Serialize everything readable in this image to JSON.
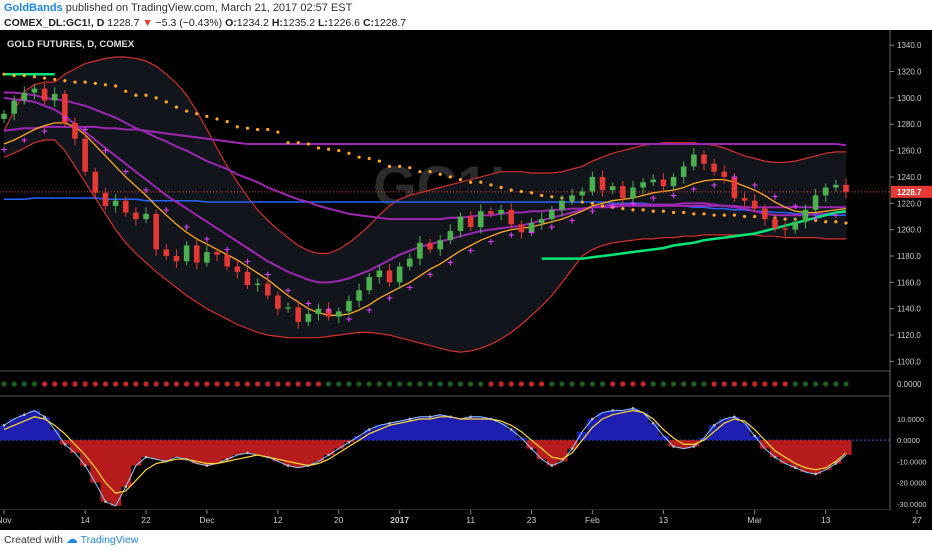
{
  "header": {
    "author": "GoldBands",
    "published_text": "published on TradingView.com, March 21, 2017 02:57 EST",
    "symbol": "COMEX_DL:GC1!, D",
    "last": "1228.7",
    "change_arrow": "▼",
    "change": "−5.3 (−0.43%)",
    "o_label": "O:",
    "o": "1234.2",
    "h_label": "H:",
    "h": "1235.2",
    "l_label": "L:",
    "l": "1226.6",
    "c_label": "C:",
    "c": "1228.7"
  },
  "footer": {
    "created_with": "Created with",
    "brand": "TradingView"
  },
  "colors": {
    "bg": "#000000",
    "up": "#4caf50",
    "down": "#e53935",
    "purple": "#9c27b0",
    "red_band": "#d32f2f",
    "orange": "#ffa726",
    "magenta": "#e040fb",
    "green_ma": "#00e676",
    "blue_line": "#2962ff",
    "hist_pos": "#1e1eb0",
    "hist_neg": "#b71c1c"
  },
  "chart_data": {
    "type": "candlestick",
    "title": "GOLD FUTURES, D, COMEX",
    "watermark": "GC1!",
    "last_price_label": "1228.7",
    "ylim": [
      1095,
      1350
    ],
    "y_ticks": [
      "1340.0",
      "1320.0",
      "1300.0",
      "1280.0",
      "1260.0",
      "1240.0",
      "1220.0",
      "1200.0",
      "1180.0",
      "1160.0",
      "1140.0",
      "1120.0",
      "1100.0"
    ],
    "x_ticks": [
      {
        "label": "Nov",
        "i": 0
      },
      {
        "label": "14",
        "i": 8
      },
      {
        "label": "22",
        "i": 14
      },
      {
        "label": "Dec",
        "i": 20
      },
      {
        "label": "12",
        "i": 27
      },
      {
        "label": "20",
        "i": 33
      },
      {
        "label": "2017",
        "i": 39
      },
      {
        "label": "11",
        "i": 46
      },
      {
        "label": "23",
        "i": 52
      },
      {
        "label": "Feb",
        "i": 58
      },
      {
        "label": "13",
        "i": 65
      },
      {
        "label": "Mar",
        "i": 74
      },
      {
        "label": "13",
        "i": 81
      },
      {
        "label": "27",
        "i": 90
      }
    ],
    "closes": [
      1288,
      1298,
      1304,
      1307,
      1298,
      1303,
      1281,
      1269,
      1244,
      1228,
      1218,
      1222,
      1213,
      1208,
      1212,
      1185,
      1180,
      1176,
      1188,
      1175,
      1183,
      1181,
      1172,
      1168,
      1158,
      1159,
      1150,
      1140,
      1141,
      1130,
      1136,
      1140,
      1134,
      1138,
      1146,
      1154,
      1164,
      1169,
      1160,
      1172,
      1178,
      1190,
      1185,
      1192,
      1199,
      1210,
      1202,
      1214,
      1212,
      1215,
      1204,
      1198,
      1205,
      1208,
      1215,
      1222,
      1226,
      1229,
      1240,
      1230,
      1233,
      1224,
      1232,
      1236,
      1238,
      1233,
      1240,
      1248,
      1257,
      1250,
      1244,
      1240,
      1224,
      1222,
      1216,
      1208,
      1201,
      1200,
      1206,
      1215,
      1226,
      1232,
      1234,
      1228.7
    ],
    "ma_purple_fast": [
      1300,
      1299,
      1298,
      1297,
      1294,
      1291,
      1286,
      1280,
      1274,
      1268,
      1262,
      1256,
      1250,
      1244,
      1238,
      1232,
      1226,
      1221,
      1216,
      1211,
      1206,
      1201,
      1196,
      1191,
      1186,
      1181,
      1176,
      1172,
      1168,
      1165,
      1162,
      1160,
      1160,
      1161,
      1163,
      1166,
      1169,
      1173,
      1177,
      1181,
      1184,
      1187,
      1189,
      1191,
      1193,
      1195,
      1197,
      1199,
      1200,
      1201,
      1202,
      1203,
      1205,
      1207,
      1209,
      1211,
      1213,
      1215,
      1217,
      1218,
      1219,
      1219,
      1219,
      1219,
      1219,
      1219,
      1219,
      1220,
      1220,
      1220,
      1219,
      1218,
      1217,
      1216,
      1214,
      1212,
      1211,
      1211,
      1211,
      1211,
      1212,
      1212,
      1213,
      1213
    ],
    "ma_purple_slow": [
      1304,
      1304,
      1303,
      1302,
      1300,
      1299,
      1298,
      1296,
      1294,
      1291,
      1288,
      1285,
      1281,
      1277,
      1274,
      1270,
      1267,
      1263,
      1260,
      1256,
      1252,
      1249,
      1246,
      1242,
      1239,
      1236,
      1232,
      1229,
      1226,
      1223,
      1221,
      1218,
      1216,
      1214,
      1212,
      1211,
      1210,
      1209,
      1208,
      1208,
      1208,
      1208,
      1208,
      1208,
      1209,
      1209,
      1210,
      1211,
      1211,
      1212,
      1213,
      1213,
      1214,
      1214,
      1215,
      1215,
      1216,
      1216,
      1217,
      1217,
      1217,
      1218,
      1218,
      1218,
      1218,
      1218,
      1218,
      1218,
      1218,
      1218,
      1218,
      1218,
      1218,
      1217,
      1217,
      1217,
      1217,
      1217,
      1217,
      1217,
      1217,
      1217,
      1217,
      1217
    ],
    "ma_purple_long": [
      1275,
      1276,
      1277,
      1277,
      1278,
      1278,
      1278,
      1278,
      1278,
      1278,
      1277,
      1277,
      1276,
      1276,
      1275,
      1274,
      1273,
      1272,
      1271,
      1270,
      1269,
      1268,
      1267,
      1266,
      1265,
      1265,
      1265,
      1265,
      1265,
      1265,
      1265,
      1265,
      1265,
      1265,
      1265,
      1265,
      1265,
      1265,
      1265,
      1265,
      1265,
      1265,
      1265,
      1265,
      1265,
      1265,
      1265,
      1265,
      1265,
      1265,
      1265,
      1265,
      1265,
      1265,
      1265,
      1265,
      1265,
      1265,
      1265,
      1265,
      1265,
      1265,
      1265,
      1265,
      1265,
      1265,
      1265,
      1265,
      1265,
      1265,
      1265,
      1265,
      1265,
      1265,
      1265,
      1265,
      1265,
      1265,
      1265,
      1265,
      1265,
      1265,
      1265,
      1264
    ],
    "band_upper": [
      1275,
      1290,
      1305,
      1310,
      1312,
      1312,
      1318,
      1322,
      1326,
      1328,
      1330,
      1331,
      1331,
      1330,
      1328,
      1324,
      1318,
      1311,
      1302,
      1290,
      1276,
      1262,
      1248,
      1236,
      1225,
      1215,
      1207,
      1200,
      1194,
      1188,
      1184,
      1182,
      1182,
      1185,
      1190,
      1196,
      1203,
      1211,
      1218,
      1223,
      1226,
      1228,
      1230,
      1232,
      1234,
      1236,
      1238,
      1240,
      1242,
      1244,
      1244,
      1244,
      1243,
      1243,
      1243,
      1244,
      1246,
      1248,
      1252,
      1255,
      1258,
      1260,
      1262,
      1264,
      1265,
      1266,
      1266,
      1266,
      1266,
      1265,
      1264,
      1262,
      1259,
      1256,
      1254,
      1252,
      1251,
      1251,
      1252,
      1254,
      1256,
      1258,
      1259,
      1259
    ],
    "band_lower": [
      1255,
      1258,
      1262,
      1266,
      1268,
      1268,
      1260,
      1248,
      1236,
      1224,
      1212,
      1200,
      1190,
      1182,
      1175,
      1168,
      1162,
      1156,
      1150,
      1145,
      1140,
      1136,
      1132,
      1128,
      1125,
      1122,
      1120,
      1119,
      1118,
      1118,
      1118,
      1118,
      1119,
      1120,
      1121,
      1122,
      1122,
      1121,
      1120,
      1118,
      1116,
      1114,
      1112,
      1110,
      1108,
      1107,
      1108,
      1110,
      1113,
      1117,
      1122,
      1128,
      1135,
      1142,
      1150,
      1160,
      1170,
      1180,
      1185,
      1188,
      1190,
      1191,
      1192,
      1193,
      1193,
      1194,
      1194,
      1195,
      1195,
      1196,
      1196,
      1196,
      1196,
      1196,
      1196,
      1195,
      1195,
      1194,
      1194,
      1194,
      1194,
      1193,
      1193,
      1193
    ],
    "orange_ma": [
      1265,
      1268,
      1272,
      1276,
      1279,
      1281,
      1281,
      1278,
      1272,
      1264,
      1256,
      1248,
      1240,
      1233,
      1226,
      1218,
      1211,
      1204,
      1198,
      1193,
      1189,
      1185,
      1181,
      1177,
      1172,
      1167,
      1162,
      1156,
      1150,
      1145,
      1140,
      1137,
      1135,
      1135,
      1136,
      1139,
      1143,
      1148,
      1152,
      1156,
      1160,
      1165,
      1170,
      1174,
      1179,
      1184,
      1188,
      1192,
      1195,
      1198,
      1200,
      1201,
      1202,
      1204,
      1206,
      1208,
      1211,
      1214,
      1218,
      1220,
      1222,
      1223,
      1224,
      1226,
      1228,
      1229,
      1230,
      1232,
      1235,
      1237,
      1238,
      1238,
      1236,
      1233,
      1230,
      1226,
      1221,
      1217,
      1214,
      1213,
      1213,
      1214,
      1215,
      1216
    ],
    "green_ma": [
      1318,
      1318,
      1318,
      1318,
      1318,
      1318,
      null,
      null,
      null,
      null,
      null,
      null,
      null,
      null,
      null,
      null,
      null,
      null,
      null,
      null,
      null,
      null,
      null,
      null,
      null,
      null,
      null,
      null,
      null,
      null,
      null,
      null,
      null,
      null,
      null,
      null,
      null,
      null,
      null,
      null,
      null,
      null,
      null,
      null,
      null,
      null,
      null,
      null,
      null,
      null,
      null,
      null,
      null,
      1178,
      1178,
      1178,
      1178,
      1178,
      1179,
      1180,
      1181,
      1182,
      1183,
      1184,
      1185,
      1186,
      1188,
      1189,
      1190,
      1192,
      1193,
      1194,
      1195,
      1196,
      1197,
      1199,
      1201,
      1203,
      1205,
      1207,
      1209,
      1211,
      1213,
      1214
    ],
    "blue_line": [
      1223,
      1223,
      1223,
      1224,
      1224,
      1224,
      1224,
      1224,
      1224,
      1224,
      1223,
      1223,
      1223,
      1223,
      1222,
      1222,
      1222,
      1222,
      1222,
      1222,
      1221,
      1221,
      1221,
      1221,
      1221,
      1221,
      1221,
      1221,
      1221,
      1221,
      1221,
      1221,
      1221,
      1221,
      1221,
      1221,
      1221,
      1221,
      1221,
      1221,
      1221,
      1221,
      1221,
      1221,
      1221,
      1221,
      1221,
      1221,
      1221,
      1221,
      1221,
      1221,
      1221,
      1221,
      1221,
      1221,
      1221,
      1221,
      1221,
      1221,
      1220,
      1220,
      1220,
      1220,
      1219,
      1219,
      1218,
      1218,
      1217,
      1217,
      1216,
      1216,
      1215,
      1215,
      1214,
      1214,
      1213,
      1213,
      1212,
      1212,
      1211,
      1211,
      1211,
      1211
    ],
    "orange_dots": [
      1318,
      1317,
      1317,
      1316,
      1315,
      1314,
      1313,
      1312,
      1312,
      1311,
      1310,
      1309,
      1305,
      1302,
      1302,
      1300,
      1297,
      1293,
      1290,
      1288,
      1286,
      1284,
      1282,
      1278,
      1277,
      1276,
      1276,
      1274,
      1266,
      1266,
      1265,
      1262,
      1261,
      1260,
      1258,
      1255,
      1254,
      1252,
      1248,
      1248,
      1247,
      1244,
      1244,
      1242,
      1240,
      1238,
      1236,
      1236,
      1234,
      1232,
      1230,
      1229,
      1228,
      1226,
      1225,
      1224,
      1222,
      1221,
      1220,
      1218,
      1217,
      1216,
      1215,
      1215,
      1214,
      1214,
      1213,
      1213,
      1212,
      1212,
      1211,
      1211,
      1211,
      1210,
      1210,
      1209,
      1209,
      1208,
      1208,
      1207,
      1207,
      1206,
      1206,
      1205
    ],
    "dot_strip": [
      "g",
      "g",
      "g",
      "g",
      "r",
      "r",
      "r",
      "r",
      "r",
      "r",
      "r",
      "r",
      "r",
      "r",
      "r",
      "r",
      "r",
      "r",
      "r",
      "r",
      "r",
      "r",
      "r",
      "r",
      "r",
      "r",
      "r",
      "r",
      "r",
      "r",
      "r",
      "r",
      "g",
      "g",
      "g",
      "g",
      "g",
      "g",
      "g",
      "g",
      "g",
      "g",
      "g",
      "g",
      "g",
      "g",
      "g",
      "g",
      "r",
      "r",
      "r",
      "r",
      "r",
      "r",
      "g",
      "g",
      "g",
      "g",
      "g",
      "g",
      "r",
      "r",
      "r",
      "r",
      "g",
      "g",
      "g",
      "g",
      "g",
      "g",
      "r",
      "r",
      "r",
      "r",
      "r",
      "r",
      "r",
      "r",
      "g",
      "g",
      "g",
      "g",
      "g",
      "g"
    ],
    "oscillator": {
      "ylim": [
        -32,
        18
      ],
      "y_ticks": [
        "10.0000",
        "0.0000",
        "-10.0000",
        "-20.0000",
        "-30.0000"
      ],
      "strip_label": "0.0000",
      "histogram": [
        7,
        10,
        12,
        14,
        11,
        5,
        -2,
        -6,
        -12,
        -20,
        -29,
        -31,
        -22,
        -12,
        -8,
        -9,
        -10,
        -8,
        -9,
        -11,
        -12,
        -11,
        -9,
        -7,
        -6,
        -7,
        -8,
        -10,
        -12,
        -13,
        -12,
        -10,
        -7,
        -4,
        -1,
        2,
        5,
        7,
        8,
        9,
        10,
        11,
        11,
        12,
        11,
        10,
        11,
        11,
        10,
        8,
        5,
        1,
        -4,
        -9,
        -12,
        -10,
        -4,
        4,
        10,
        13,
        14,
        14,
        15,
        13,
        8,
        2,
        -3,
        -4,
        -3,
        1,
        7,
        10,
        11,
        8,
        2,
        -4,
        -8,
        -11,
        -13,
        -15,
        -16,
        -14,
        -11,
        -7
      ],
      "signal": [
        5,
        7,
        9,
        11,
        10,
        7,
        3,
        -2,
        -7,
        -13,
        -20,
        -25,
        -24,
        -19,
        -14,
        -11,
        -10,
        -9,
        -9,
        -10,
        -11,
        -11,
        -10,
        -9,
        -8,
        -7,
        -8,
        -9,
        -10,
        -11,
        -12,
        -11,
        -9,
        -6,
        -3,
        0,
        3,
        5,
        7,
        8,
        9,
        10,
        10,
        11,
        11,
        10,
        10,
        10,
        10,
        9,
        7,
        4,
        0,
        -4,
        -8,
        -9,
        -6,
        0,
        6,
        10,
        12,
        13,
        14,
        13,
        10,
        5,
        1,
        -2,
        -2,
        0,
        4,
        8,
        10,
        9,
        5,
        0,
        -5,
        -8,
        -11,
        -13,
        -14,
        -13,
        -10,
        -6
      ]
    }
  }
}
